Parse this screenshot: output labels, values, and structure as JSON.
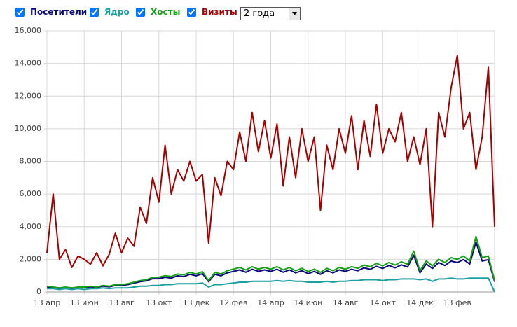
{
  "chart_data": {
    "type": "line",
    "period": "2 года",
    "categories": [
      "13 апр",
      null,
      null,
      null,
      null,
      null,
      "13 июн",
      null,
      null,
      null,
      null,
      null,
      "13 авг",
      null,
      null,
      null,
      null,
      null,
      "13 окт",
      null,
      null,
      null,
      null,
      null,
      "13 дек",
      null,
      null,
      null,
      null,
      null,
      "12 фев",
      null,
      null,
      null,
      null,
      null,
      "14 апр",
      null,
      null,
      null,
      null,
      null,
      "14 июн",
      null,
      null,
      null,
      null,
      null,
      "14 авг",
      null,
      null,
      null,
      null,
      null,
      "14 окт",
      null,
      null,
      null,
      null,
      null,
      "14 дек",
      null,
      null,
      null,
      null,
      null,
      "13 фев",
      null,
      null,
      null,
      null,
      null,
      null
    ],
    "ylim": [
      0,
      16000
    ],
    "yticks": [
      0,
      {
        "value": 2000,
        "label": "2,000"
      },
      {
        "value": 4000,
        "label": "4,000"
      },
      {
        "value": 6000,
        "label": "6,000"
      },
      {
        "value": 8000,
        "label": "8,000"
      },
      {
        "value": 10000,
        "label": "10,000"
      },
      {
        "value": 12000,
        "label": "12,000"
      },
      {
        "value": 14000,
        "label": "14,000"
      },
      {
        "value": 16000,
        "label": "16,000"
      }
    ],
    "grid": true,
    "series": [
      {
        "name": "Посетители",
        "color": "#0a0a78",
        "values": [
          310,
          270,
          220,
          270,
          220,
          270,
          270,
          310,
          270,
          360,
          310,
          400,
          400,
          450,
          540,
          630,
          680,
          810,
          810,
          900,
          850,
          990,
          940,
          1080,
          990,
          1120,
          630,
          1080,
          990,
          1170,
          1260,
          1350,
          1210,
          1390,
          1260,
          1350,
          1260,
          1390,
          1210,
          1350,
          1170,
          1300,
          1120,
          1260,
          1080,
          1300,
          1170,
          1350,
          1260,
          1390,
          1300,
          1480,
          1390,
          1570,
          1440,
          1620,
          1480,
          1660,
          1530,
          2250,
          1170,
          1710,
          1440,
          1800,
          1620,
          1890,
          1800,
          1980,
          1710,
          3060,
          1890,
          1980,
          630
        ]
      },
      {
        "name": "Ядро",
        "color": "#1ca0a0",
        "values": [
          200,
          200,
          150,
          200,
          150,
          200,
          150,
          200,
          200,
          250,
          200,
          250,
          250,
          250,
          300,
          350,
          350,
          400,
          400,
          450,
          450,
          500,
          500,
          500,
          500,
          550,
          300,
          450,
          450,
          500,
          550,
          600,
          600,
          650,
          650,
          650,
          650,
          700,
          650,
          700,
          650,
          650,
          600,
          600,
          600,
          650,
          600,
          650,
          650,
          700,
          700,
          750,
          750,
          750,
          700,
          750,
          750,
          800,
          800,
          800,
          750,
          800,
          650,
          800,
          800,
          850,
          800,
          800,
          850,
          850,
          850,
          850,
          0
        ]
      },
      {
        "name": "Хосты",
        "color": "#17a017",
        "values": [
          350,
          300,
          250,
          300,
          250,
          300,
          300,
          350,
          300,
          400,
          350,
          450,
          450,
          500,
          600,
          700,
          750,
          900,
          900,
          1000,
          950,
          1100,
          1050,
          1200,
          1100,
          1250,
          700,
          1200,
          1100,
          1300,
          1400,
          1500,
          1350,
          1550,
          1400,
          1500,
          1400,
          1550,
          1350,
          1500,
          1300,
          1450,
          1250,
          1400,
          1200,
          1450,
          1300,
          1500,
          1400,
          1550,
          1450,
          1650,
          1550,
          1750,
          1600,
          1800,
          1650,
          1850,
          1700,
          2500,
          1300,
          1900,
          1600,
          2000,
          1800,
          2100,
          2000,
          2200,
          1900,
          3400,
          2100,
          2200,
          700
        ]
      },
      {
        "name": "Визиты",
        "color": "#a80000",
        "values": [
          2400,
          6000,
          2000,
          2600,
          1500,
          2200,
          2000,
          1700,
          2400,
          1600,
          2300,
          3600,
          2400,
          3300,
          2800,
          5200,
          4200,
          7000,
          5500,
          9000,
          6000,
          7500,
          6800,
          8000,
          6800,
          7200,
          3000,
          7000,
          5900,
          8000,
          7500,
          9800,
          8000,
          11000,
          8600,
          10500,
          8200,
          10300,
          6500,
          9500,
          7000,
          10000,
          8000,
          9500,
          5000,
          9000,
          7500,
          10000,
          8500,
          10800,
          7500,
          10500,
          8300,
          11500,
          8500,
          10000,
          9200,
          11000,
          8000,
          9500,
          7800,
          10000,
          4000,
          11000,
          9500,
          12500,
          14500,
          10000,
          11000,
          7500,
          9500,
          13800,
          4000
        ]
      }
    ]
  }
}
